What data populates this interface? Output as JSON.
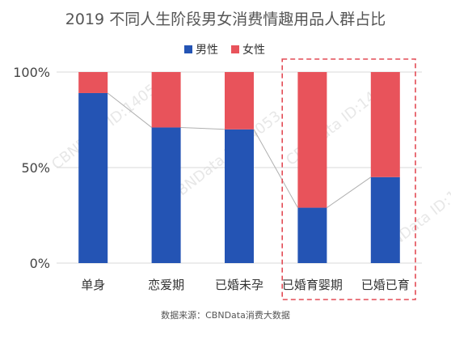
{
  "chart_data": {
    "type": "bar",
    "stacked": true,
    "percent_stacked": true,
    "title": "2019 不同人生阶段男女消费情趣用品人群占比",
    "categories": [
      "单身",
      "恋爱期",
      "已婚未孕",
      "已婚育婴期",
      "已婚已育"
    ],
    "series": [
      {
        "name": "男性",
        "values": [
          89,
          71,
          70,
          29,
          45
        ]
      },
      {
        "name": "女性",
        "values": [
          11,
          29,
          30,
          71,
          55
        ]
      }
    ],
    "ylim": [
      0,
      100
    ],
    "yticks": [
      "0%",
      "50%",
      "100%"
    ],
    "legend": "top-center",
    "connector_line": true,
    "highlight_categories": [
      "已婚育婴期",
      "已婚已育"
    ],
    "colors": {
      "男性": "#2454b4",
      "女性": "#e8535b",
      "highlight_border": "#e34b55"
    }
  },
  "source": "数据来源：CBNData消费大数据",
  "watermark": "CBNData ID:14053"
}
